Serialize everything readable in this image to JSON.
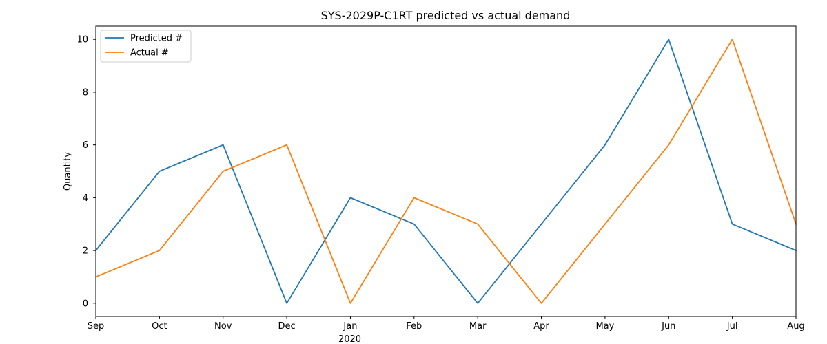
{
  "chart_data": {
    "type": "line",
    "title": "SYS-2029P-C1RT predicted vs actual demand",
    "xlabel": "",
    "ylabel": "Quantity",
    "categories": [
      "Sep",
      "Oct",
      "Nov",
      "Dec",
      "Jan",
      "Feb",
      "Mar",
      "Apr",
      "May",
      "Jun",
      "Jul",
      "Aug"
    ],
    "year_label": "2020",
    "series": [
      {
        "name": "Predicted #",
        "color": "#1f77b4",
        "values": [
          2,
          5,
          6,
          0,
          4,
          3,
          0,
          3,
          6,
          10,
          3,
          2
        ]
      },
      {
        "name": "Actual #",
        "color": "#ff7f0e",
        "values": [
          1,
          2,
          5,
          6,
          0,
          4,
          3,
          0,
          3,
          6,
          10,
          3
        ]
      }
    ],
    "ylim": [
      -0.5,
      10.5
    ],
    "yticks": [
      0,
      2,
      4,
      6,
      8,
      10
    ],
    "grid": false,
    "legend_position": "top-left"
  }
}
